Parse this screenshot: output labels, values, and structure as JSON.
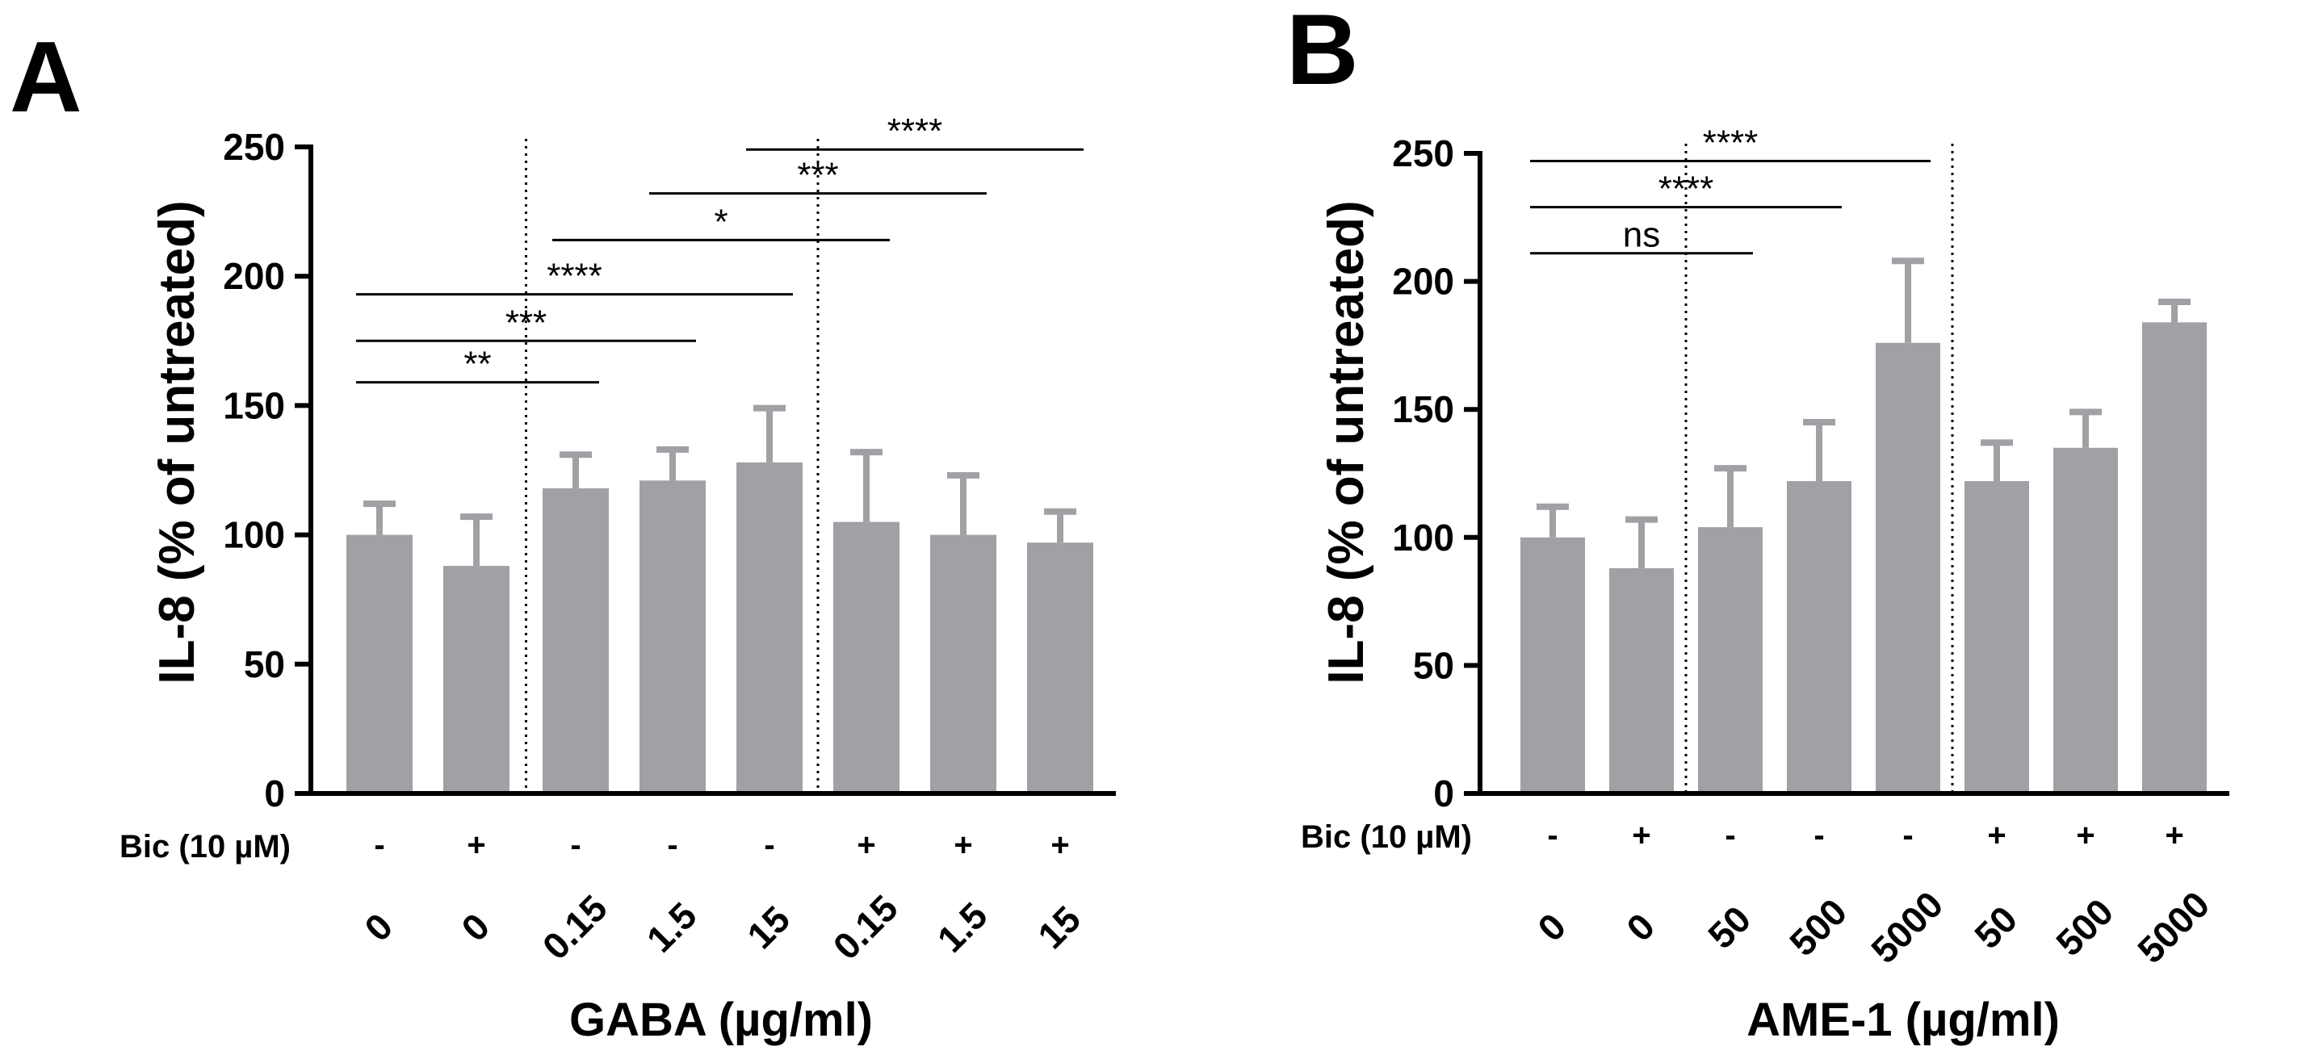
{
  "figure": {
    "panels": [
      "A",
      "B"
    ]
  },
  "chart_data": [
    {
      "type": "bar",
      "panel": "A",
      "title": "",
      "ylabel": "IL-8 (% of untreated)",
      "xlabel": "GABA (µg/ml)",
      "ylim": [
        0,
        250
      ],
      "yticks": [
        "0",
        "50",
        "100",
        "150",
        "200",
        "250"
      ],
      "bic_label": "Bic (10 µM)",
      "categories": [
        "0",
        "0",
        "0.15",
        "1.5",
        "15",
        "0.15",
        "1.5",
        "15"
      ],
      "bic": [
        "-",
        "+",
        "-",
        "-",
        "-",
        "+",
        "+",
        "+"
      ],
      "values": [
        100,
        88,
        118,
        121,
        128,
        105,
        100,
        97
      ],
      "errors": [
        12,
        19,
        13,
        12,
        21,
        27,
        23,
        12
      ],
      "bar_color": "#a0a1a5",
      "separators_after_index": [
        1,
        4
      ],
      "significance": [
        {
          "from": 0,
          "to": 2,
          "label": "**",
          "y": 159
        },
        {
          "from": 0,
          "to": 3,
          "label": "***",
          "y": 175
        },
        {
          "from": 0,
          "to": 4,
          "label": "****",
          "y": 193
        },
        {
          "from": 2,
          "to": 5,
          "label": "*",
          "y": 214
        },
        {
          "from": 3,
          "to": 6,
          "label": "***",
          "y": 232
        },
        {
          "from": 4,
          "to": 7,
          "label": "****",
          "y": 249
        }
      ]
    },
    {
      "type": "bar",
      "panel": "B",
      "title": "",
      "ylabel": "IL-8 (% of untreated)",
      "xlabel": "AME-1 (µg/ml)",
      "ylim": [
        0,
        250
      ],
      "yticks": [
        "0",
        "50",
        "100",
        "150",
        "200",
        "250"
      ],
      "bic_label": "Bic (10 µM)",
      "categories": [
        "0",
        "0",
        "50",
        "500",
        "5000",
        "50",
        "500",
        "5000"
      ],
      "bic": [
        "-",
        "+",
        "-",
        "-",
        "-",
        "+",
        "+",
        "+"
      ],
      "values": [
        100,
        88,
        104,
        122,
        176,
        122,
        135,
        184
      ],
      "errors": [
        12,
        19,
        23,
        23,
        32,
        15,
        14,
        8
      ],
      "bar_color": "#a0a1a5",
      "separators_after_index": [
        1,
        4
      ],
      "significance": [
        {
          "from": 0,
          "to": 2,
          "label": "ns",
          "y": 211
        },
        {
          "from": 0,
          "to": 3,
          "label": "****",
          "y": 229
        },
        {
          "from": 0,
          "to": 4,
          "label": "****",
          "y": 247
        }
      ]
    }
  ]
}
